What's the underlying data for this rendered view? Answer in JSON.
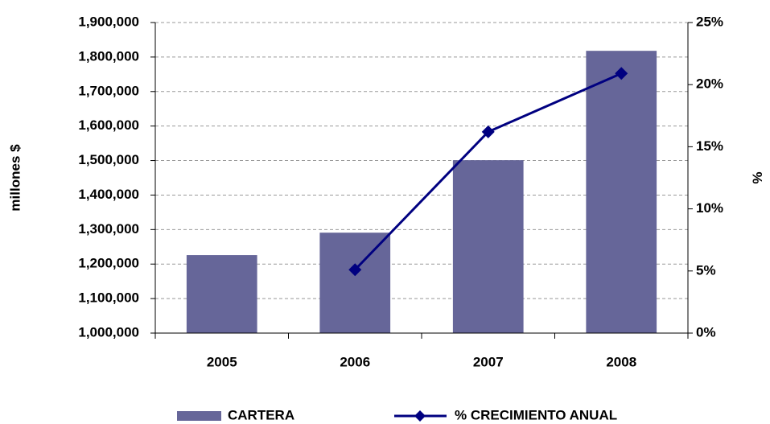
{
  "chart_data": {
    "type": "bar-line",
    "categories": [
      "2005",
      "2006",
      "2007",
      "2008"
    ],
    "series": [
      {
        "name": "CARTERA",
        "type": "bar",
        "color": "#666699",
        "values": [
          1226000,
          1291000,
          1501000,
          1818000
        ]
      },
      {
        "name": "% CRECIMIENTO ANUAL",
        "type": "line",
        "axis": "y2",
        "color": "#000080",
        "values": [
          null,
          5.1,
          16.2,
          20.9
        ]
      }
    ],
    "ylabel": "millones $",
    "y2label": "%",
    "ylim": [
      1000000,
      1900000
    ],
    "yticks": [
      {
        "value": 1000000,
        "label": "1,000,000"
      },
      {
        "value": 1100000,
        "label": "1,100,000"
      },
      {
        "value": 1200000,
        "label": "1,200,000"
      },
      {
        "value": 1300000,
        "label": "1,300,000"
      },
      {
        "value": 1400000,
        "label": "1,400,000"
      },
      {
        "value": 1500000,
        "label": "1,500,000"
      },
      {
        "value": 1600000,
        "label": "1,600,000"
      },
      {
        "value": 1700000,
        "label": "1,700,000"
      },
      {
        "value": 1800000,
        "label": "1,800,000"
      },
      {
        "value": 1900000,
        "label": "1,900,000"
      }
    ],
    "y2lim": [
      0,
      25
    ],
    "y2ticks": [
      {
        "value": 0,
        "label": "0%"
      },
      {
        "value": 5,
        "label": "5%"
      },
      {
        "value": 10,
        "label": "10%"
      },
      {
        "value": 15,
        "label": "15%"
      },
      {
        "value": 20,
        "label": "20%"
      },
      {
        "value": 25,
        "label": "25%"
      }
    ],
    "grid": true,
    "legend": "bottom"
  }
}
